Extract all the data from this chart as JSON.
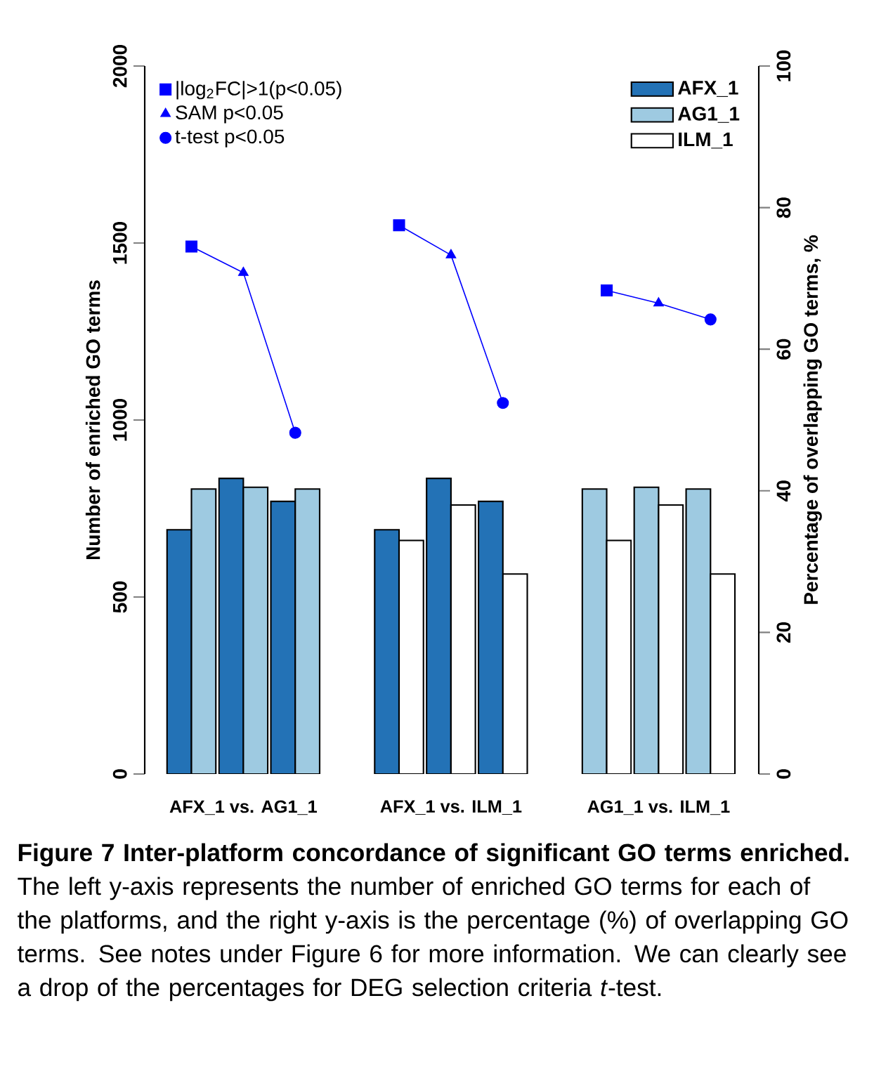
{
  "chart_data": {
    "type": "bar",
    "categories": [
      null,
      "AFX_1 vs. AG1_1",
      null,
      null,
      null,
      "AFX_1 vs. ILM_1",
      null,
      null,
      null,
      "AG1_1 vs. ILM_1",
      null
    ],
    "series": [
      {
        "name": "AFX_1",
        "color": "#2372b6",
        "values": [
          690,
          835,
          770,
          null,
          690,
          835,
          770,
          null,
          null,
          null,
          null
        ]
      },
      {
        "name": "AG1_1",
        "color": "#9ecae1",
        "values": [
          805,
          810,
          805,
          null,
          null,
          null,
          null,
          null,
          805,
          810,
          805
        ]
      },
      {
        "name": "ILM_1",
        "color": "#ffffff",
        "values": [
          null,
          null,
          null,
          null,
          660,
          760,
          565,
          null,
          660,
          760,
          565
        ]
      },
      {
        "type": "line",
        "axis": "y2",
        "color": "#0000ff",
        "line_style": "solid",
        "values": [
          74.5,
          70.8,
          48.2,
          null,
          77.5,
          73.3,
          52.4,
          null,
          68.3,
          66.5,
          64.2
        ]
      },
      {
        "type": "scatter",
        "axis": "y2",
        "name": "|log$_{2}$FC|>1(p<0.05)",
        "marker": "square",
        "color": "#0000ff",
        "values": [
          74.5,
          null,
          null,
          null,
          77.5,
          null,
          null,
          null,
          68.3,
          null,
          null
        ]
      },
      {
        "type": "scatter",
        "axis": "y2",
        "name": "SAM p<0.05",
        "marker": "triangle",
        "color": "#0000ff",
        "values": [
          null,
          70.8,
          null,
          null,
          null,
          73.3,
          null,
          null,
          null,
          66.5,
          null
        ]
      },
      {
        "type": "scatter",
        "axis": "y2",
        "name": "t-test p<0.05",
        "marker": "circle",
        "color": "#0000ff",
        "values": [
          null,
          null,
          48.2,
          null,
          null,
          null,
          52.4,
          null,
          null,
          null,
          64.2
        ]
      }
    ],
    "ylabel": "Number of enriched GO terms",
    "y2label": "Percentage of overlapping GO terms, %",
    "ylim": [
      0,
      2000
    ],
    "yticks": [
      0,
      500,
      1000,
      1500,
      2000
    ],
    "y2lim": [
      0,
      100
    ],
    "y2ticks": [
      0,
      20,
      40,
      60,
      80,
      100
    ],
    "legend": "top",
    "annotations": [
      "**Figure 7 Inter-platform concordance of significant GO terms enriched.** The left y-axis represents the number of enriched GO terms for each of the platforms, and the right y-axis is the percentage (%) of overlapping GO terms. See notes under Figure 6 for more information. We can clearly see a drop of the percentages for DEG selection criteria *t*-test."
    ]
  }
}
